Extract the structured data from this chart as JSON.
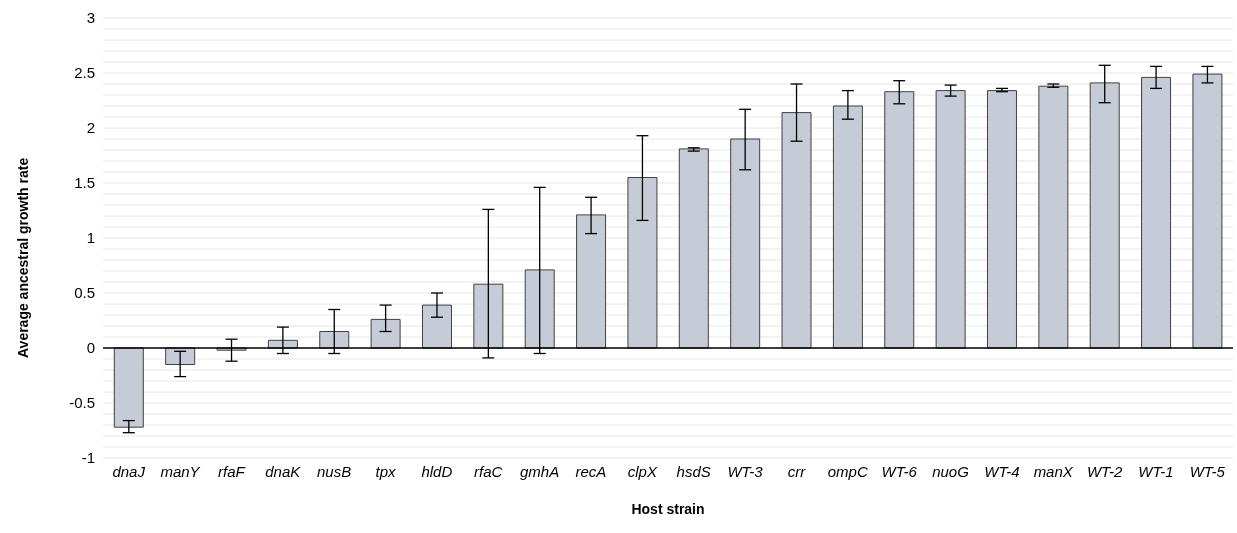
{
  "chart_data": {
    "type": "bar",
    "xlabel": "Host strain",
    "ylabel": "Average ancestral growth rate",
    "categories": [
      "dnaJ",
      "manY",
      "rfaF",
      "dnaK",
      "nusB",
      "tpx",
      "hldD",
      "rfaC",
      "gmhA",
      "recA",
      "clpX",
      "hsdS",
      "WT-3",
      "crr",
      "ompC",
      "WT-6",
      "nuoG",
      "WT-4",
      "manX",
      "WT-2",
      "WT-1",
      "WT-5"
    ],
    "values": [
      -0.72,
      -0.15,
      -0.02,
      0.07,
      0.15,
      0.26,
      0.39,
      0.58,
      0.71,
      1.21,
      1.55,
      1.81,
      1.9,
      2.14,
      2.2,
      2.33,
      2.34,
      2.34,
      2.38,
      2.41,
      2.46,
      2.49
    ],
    "errors": [
      [
        -0.77,
        -0.66
      ],
      [
        -0.26,
        -0.03
      ],
      [
        -0.12,
        0.08
      ],
      [
        -0.05,
        0.19
      ],
      [
        -0.05,
        0.35
      ],
      [
        0.15,
        0.39
      ],
      [
        0.28,
        0.5
      ],
      [
        -0.09,
        1.26
      ],
      [
        -0.05,
        1.46
      ],
      [
        1.04,
        1.37
      ],
      [
        1.16,
        1.93
      ],
      [
        1.79,
        1.82
      ],
      [
        1.62,
        2.17
      ],
      [
        1.88,
        2.4
      ],
      [
        2.08,
        2.34
      ],
      [
        2.22,
        2.43
      ],
      [
        2.29,
        2.39
      ],
      [
        2.33,
        2.36
      ],
      [
        2.37,
        2.4
      ],
      [
        2.23,
        2.57
      ],
      [
        2.36,
        2.56
      ],
      [
        2.41,
        2.56
      ]
    ],
    "color": "#c5cbd7",
    "ylim": [
      -1,
      3
    ],
    "yticks": [
      -1,
      {
        "value": -0.9,
        "label": null
      },
      {
        "value": -0.8,
        "label": null
      },
      {
        "value": -0.7,
        "label": null
      },
      {
        "value": -0.6,
        "label": null
      },
      -0.5,
      {
        "value": -0.4,
        "label": null
      },
      {
        "value": -0.3,
        "label": null
      },
      {
        "value": -0.2,
        "label": null
      },
      {
        "value": -0.1,
        "label": null
      },
      0,
      {
        "value": 0.1,
        "label": null
      },
      {
        "value": 0.2,
        "label": null
      },
      {
        "value": 0.3,
        "label": null
      },
      {
        "value": 0.4,
        "label": null
      },
      0.5,
      {
        "value": 0.6,
        "label": null
      },
      {
        "value": 0.7,
        "label": null
      },
      {
        "value": 0.8,
        "label": null
      },
      {
        "value": 0.9,
        "label": null
      },
      1,
      {
        "value": 1.1,
        "label": null
      },
      {
        "value": 1.2,
        "label": null
      },
      {
        "value": 1.3,
        "label": null
      },
      {
        "value": 1.4,
        "label": null
      },
      1.5,
      {
        "value": 1.6,
        "label": null
      },
      {
        "value": 1.7,
        "label": null
      },
      {
        "value": 1.8,
        "label": null
      },
      {
        "value": 1.9,
        "label": null
      },
      2,
      {
        "value": 2.1,
        "label": null
      },
      {
        "value": 2.2,
        "label": null
      },
      {
        "value": 2.3,
        "label": null
      },
      {
        "value": 2.4,
        "label": null
      },
      2.5,
      {
        "value": 2.6,
        "label": null
      },
      {
        "value": 2.7,
        "label": null
      },
      {
        "value": 2.8,
        "label": null
      },
      {
        "value": 2.9,
        "label": null
      },
      3
    ],
    "grid": "y",
    "legend": false
  }
}
